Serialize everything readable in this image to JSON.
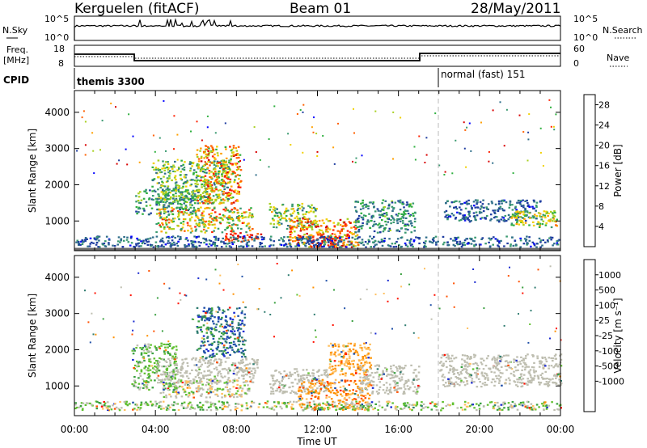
{
  "header": {
    "station": "Kerguelen (fitACF)",
    "beam": "Beam 01",
    "date": "28/May/2011"
  },
  "strip_labels": {
    "nsky": "N.Sky",
    "nsky_ticks": [
      "10^5",
      "10^0"
    ],
    "nsearch": "N.Search",
    "nsearch_ticks": [
      "10^5",
      "10^0"
    ],
    "freq": "Freq.",
    "freq_unit": "[MHz]",
    "freq_ticks": [
      "18",
      "8"
    ],
    "nave": "Nave",
    "nave_ticks": [
      "60",
      "0"
    ],
    "cpid": "CPID"
  },
  "cpid_segments": [
    {
      "label": "themis 3300",
      "start_hour": 0
    },
    {
      "label": "normal (fast) 151",
      "start_hour": 18
    }
  ],
  "colors": {
    "power": [
      "#0000ff",
      "#1e3ca0",
      "#2f6e8a",
      "#3a9a70",
      "#30b040",
      "#a8d020",
      "#f0d000",
      "#ffa000",
      "#ff6000",
      "#ff2000",
      "#d80000"
    ],
    "velocity": [
      "#1a2ad0",
      "#2050a8",
      "#2f7c70",
      "#3aa040",
      "#60c030",
      "#bebeb0",
      "#ffc060",
      "#ff9000",
      "#ff5000",
      "#ff1000"
    ],
    "ground": "#7a7a7a"
  },
  "chart_data": [
    {
      "type": "heatmap",
      "name": "power",
      "xlabel": "",
      "ylabel": "Slant Range [km]",
      "xlim": [
        0,
        24
      ],
      "ylim": [
        180,
        4600
      ],
      "x_ticks": [
        "00:00",
        "04:00",
        "08:00",
        "12:00",
        "16:00",
        "20:00",
        "00:00"
      ],
      "y_ticks": [
        1000,
        2000,
        3000,
        4000
      ],
      "colorbar_label": "Power [dB]",
      "colorbar_ticks": [
        "28",
        "24",
        "20",
        "16",
        "12",
        "8",
        "4"
      ],
      "colorbar_range": [
        0,
        30
      ],
      "regions": [
        {
          "t": [
            3.0,
            6.2
          ],
          "r": [
            1200,
            1900
          ],
          "v": [
            4,
            16
          ]
        },
        {
          "t": [
            3.8,
            7.6
          ],
          "r": [
            1500,
            2700
          ],
          "v": [
            6,
            18
          ]
        },
        {
          "t": [
            6.0,
            8.2
          ],
          "r": [
            1500,
            3100
          ],
          "v": [
            12,
            28
          ]
        },
        {
          "t": [
            4.0,
            8.8
          ],
          "r": [
            700,
            1400
          ],
          "v": [
            8,
            26
          ]
        },
        {
          "t": [
            7.4,
            9.2
          ],
          "r": [
            450,
            700
          ],
          "v": [
            22,
            30
          ]
        },
        {
          "t": [
            9.6,
            12.0
          ],
          "r": [
            800,
            1500
          ],
          "v": [
            6,
            20
          ]
        },
        {
          "t": [
            10.5,
            14.0
          ],
          "r": [
            300,
            1100
          ],
          "v": [
            14,
            30
          ]
        },
        {
          "t": [
            11.5,
            13.2
          ],
          "r": [
            250,
            600
          ],
          "v": [
            24,
            30
          ]
        },
        {
          "t": [
            13.8,
            16.8
          ],
          "r": [
            700,
            1600
          ],
          "v": [
            4,
            14
          ]
        },
        {
          "t": [
            18.2,
            23.0
          ],
          "r": [
            1000,
            1600
          ],
          "v": [
            2,
            10
          ]
        },
        {
          "t": [
            21.5,
            23.8
          ],
          "r": [
            850,
            1300
          ],
          "v": [
            10,
            22
          ]
        },
        {
          "t": [
            0.0,
            24.0
          ],
          "r": [
            300,
            600
          ],
          "v": [
            2,
            10
          ]
        }
      ]
    },
    {
      "type": "heatmap",
      "name": "velocity",
      "xlabel": "Time UT",
      "ylabel": "Slant Range [km]",
      "xlim": [
        0,
        24
      ],
      "ylim": [
        180,
        4600
      ],
      "x_ticks": [
        "00:00",
        "04:00",
        "08:00",
        "12:00",
        "16:00",
        "20:00",
        "00:00"
      ],
      "y_ticks": [
        1000,
        2000,
        3000,
        4000
      ],
      "colorbar_label": "Velocity [m s⁻¹]",
      "colorbar_ticks": [
        "1000",
        "500",
        "100",
        "25",
        "-25",
        "-100",
        "-500",
        "-1000"
      ],
      "regions": [
        {
          "t": [
            2.8,
            5.0
          ],
          "r": [
            900,
            2200
          ],
          "v": [
            3,
            5
          ]
        },
        {
          "t": [
            4.0,
            9.0
          ],
          "r": [
            1100,
            1800
          ],
          "v": [
            5,
            5
          ]
        },
        {
          "t": [
            6.0,
            8.4
          ],
          "r": [
            1800,
            3200
          ],
          "v": [
            0,
            3
          ]
        },
        {
          "t": [
            4.2,
            8.8
          ],
          "r": [
            700,
            1200
          ],
          "v": [
            4,
            6
          ]
        },
        {
          "t": [
            9.6,
            12.5
          ],
          "r": [
            800,
            1500
          ],
          "v": [
            5,
            5
          ]
        },
        {
          "t": [
            11.0,
            14.6
          ],
          "r": [
            350,
            1200
          ],
          "v": [
            6,
            8
          ]
        },
        {
          "t": [
            12.5,
            14.6
          ],
          "r": [
            1300,
            2200
          ],
          "v": [
            6,
            7
          ]
        },
        {
          "t": [
            14.0,
            17.0
          ],
          "r": [
            800,
            1600
          ],
          "v": [
            5,
            5
          ]
        },
        {
          "t": [
            18.0,
            24.0
          ],
          "r": [
            1000,
            1900
          ],
          "v": [
            5,
            5
          ]
        },
        {
          "t": [
            0.0,
            24.0
          ],
          "r": [
            350,
            600
          ],
          "v": [
            3,
            6
          ]
        }
      ]
    }
  ]
}
